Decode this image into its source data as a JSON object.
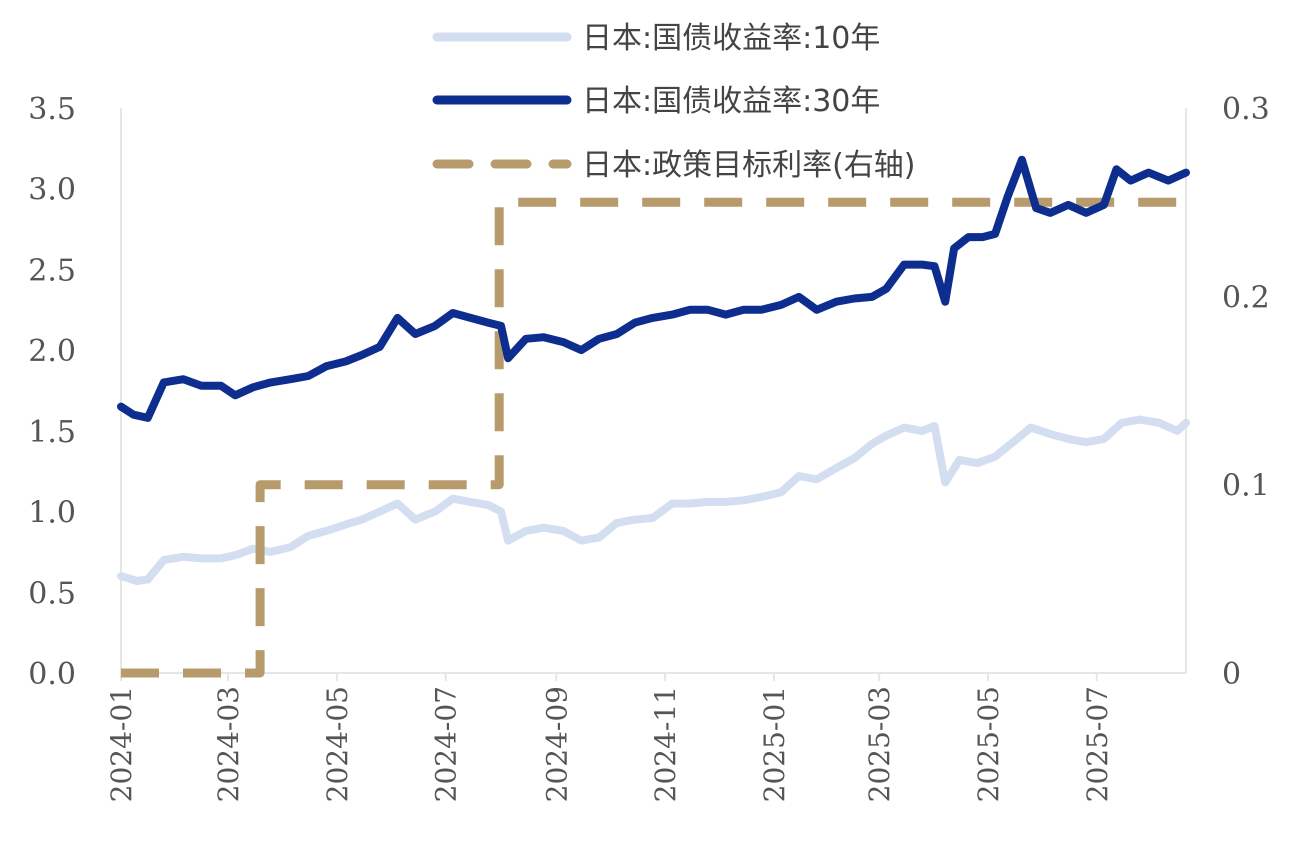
{
  "chart_data": {
    "type": "line",
    "title": "",
    "xlabel": "",
    "ylabel": "",
    "x_ticks": [
      "2024-01",
      "2024-03",
      "2024-05",
      "2024-07",
      "2024-09",
      "2024-11",
      "2025-01",
      "2025-03",
      "2025-05",
      "2025-07"
    ],
    "x_range": [
      "2024-01-01",
      "2025-08-20"
    ],
    "y_left": {
      "min": 0,
      "max": 3.5,
      "ticks": [
        "0.0",
        "0.5",
        "1.0",
        "1.5",
        "2.0",
        "2.5",
        "3.0",
        "3.5"
      ]
    },
    "y_right": {
      "min": 0,
      "max": 0.3,
      "ticks": [
        "0",
        "0.1",
        "0.2",
        "0.3"
      ]
    },
    "legend_position": "top-center",
    "series": [
      {
        "name": "日本:国债收益率:10年",
        "axis": "left",
        "color": "#d3def0",
        "style": "solid",
        "dates": [
          "2024-01-01",
          "2024-01-10",
          "2024-01-16",
          "2024-01-25",
          "2024-02-05",
          "2024-02-15",
          "2024-02-26",
          "2024-03-05",
          "2024-03-15",
          "2024-03-25",
          "2024-04-05",
          "2024-04-15",
          "2024-04-25",
          "2024-05-06",
          "2024-05-15",
          "2024-05-25",
          "2024-06-04",
          "2024-06-14",
          "2024-06-25",
          "2024-07-05",
          "2024-07-15",
          "2024-07-25",
          "2024-08-01",
          "2024-08-05",
          "2024-08-15",
          "2024-08-25",
          "2024-09-05",
          "2024-09-15",
          "2024-09-25",
          "2024-10-05",
          "2024-10-15",
          "2024-10-25",
          "2024-11-05",
          "2024-11-15",
          "2024-11-25",
          "2024-12-05",
          "2024-12-15",
          "2024-12-25",
          "2025-01-05",
          "2025-01-15",
          "2025-01-25",
          "2025-02-05",
          "2025-02-15",
          "2025-02-25",
          "2025-03-05",
          "2025-03-15",
          "2025-03-25",
          "2025-04-01",
          "2025-04-07",
          "2025-04-15",
          "2025-04-25",
          "2025-05-05",
          "2025-05-15",
          "2025-05-25",
          "2025-06-05",
          "2025-06-15",
          "2025-06-25",
          "2025-07-05",
          "2025-07-15",
          "2025-07-25",
          "2025-08-05",
          "2025-08-15",
          "2025-08-20"
        ],
        "values": [
          0.6,
          0.57,
          0.58,
          0.7,
          0.72,
          0.71,
          0.71,
          0.73,
          0.77,
          0.75,
          0.78,
          0.85,
          0.88,
          0.92,
          0.95,
          1.0,
          1.05,
          0.95,
          1.0,
          1.08,
          1.06,
          1.04,
          1.0,
          0.82,
          0.88,
          0.9,
          0.88,
          0.82,
          0.84,
          0.93,
          0.95,
          0.96,
          1.05,
          1.05,
          1.06,
          1.06,
          1.07,
          1.09,
          1.12,
          1.22,
          1.2,
          1.27,
          1.33,
          1.42,
          1.47,
          1.52,
          1.5,
          1.53,
          1.18,
          1.32,
          1.3,
          1.34,
          1.43,
          1.52,
          1.48,
          1.45,
          1.43,
          1.45,
          1.55,
          1.57,
          1.55,
          1.5,
          1.55
        ]
      },
      {
        "name": "日本:国债收益率:30年",
        "axis": "left",
        "color": "#0d2d8f",
        "style": "solid",
        "dates": [
          "2024-01-01",
          "2024-01-08",
          "2024-01-16",
          "2024-01-25",
          "2024-02-05",
          "2024-02-15",
          "2024-02-26",
          "2024-03-05",
          "2024-03-15",
          "2024-03-25",
          "2024-04-05",
          "2024-04-15",
          "2024-04-25",
          "2024-05-06",
          "2024-05-15",
          "2024-05-25",
          "2024-06-04",
          "2024-06-14",
          "2024-06-25",
          "2024-07-05",
          "2024-07-15",
          "2024-07-25",
          "2024-08-01",
          "2024-08-05",
          "2024-08-15",
          "2024-08-25",
          "2024-09-05",
          "2024-09-15",
          "2024-09-25",
          "2024-10-05",
          "2024-10-15",
          "2024-10-25",
          "2024-11-05",
          "2024-11-15",
          "2024-11-25",
          "2024-12-05",
          "2024-12-15",
          "2024-12-25",
          "2025-01-05",
          "2025-01-15",
          "2025-01-25",
          "2025-02-05",
          "2025-02-15",
          "2025-02-25",
          "2025-03-05",
          "2025-03-15",
          "2025-03-25",
          "2025-04-01",
          "2025-04-07",
          "2025-04-12",
          "2025-04-20",
          "2025-04-28",
          "2025-05-05",
          "2025-05-12",
          "2025-05-20",
          "2025-05-28",
          "2025-06-05",
          "2025-06-15",
          "2025-06-25",
          "2025-07-05",
          "2025-07-12",
          "2025-07-20",
          "2025-07-30",
          "2025-08-10",
          "2025-08-20"
        ],
        "values": [
          1.65,
          1.6,
          1.58,
          1.8,
          1.82,
          1.78,
          1.78,
          1.72,
          1.77,
          1.8,
          1.82,
          1.84,
          1.9,
          1.93,
          1.97,
          2.02,
          2.2,
          2.1,
          2.15,
          2.23,
          2.2,
          2.17,
          2.15,
          1.95,
          2.07,
          2.08,
          2.05,
          2.0,
          2.07,
          2.1,
          2.17,
          2.2,
          2.22,
          2.25,
          2.25,
          2.22,
          2.25,
          2.25,
          2.28,
          2.33,
          2.25,
          2.3,
          2.32,
          2.33,
          2.38,
          2.53,
          2.53,
          2.52,
          2.3,
          2.63,
          2.7,
          2.7,
          2.72,
          2.95,
          3.18,
          2.88,
          2.85,
          2.9,
          2.85,
          2.9,
          3.12,
          3.05,
          3.1,
          3.05,
          3.1
        ]
      },
      {
        "name": "日本:政策目标利率(右轴)",
        "axis": "right",
        "color": "#b89b6c",
        "style": "dashed",
        "dates": [
          "2024-01-01",
          "2024-03-19",
          "2024-03-19",
          "2024-07-31",
          "2024-07-31",
          "2025-08-20"
        ],
        "values": [
          0,
          0,
          0.1,
          0.1,
          0.25,
          0.25
        ]
      }
    ]
  }
}
